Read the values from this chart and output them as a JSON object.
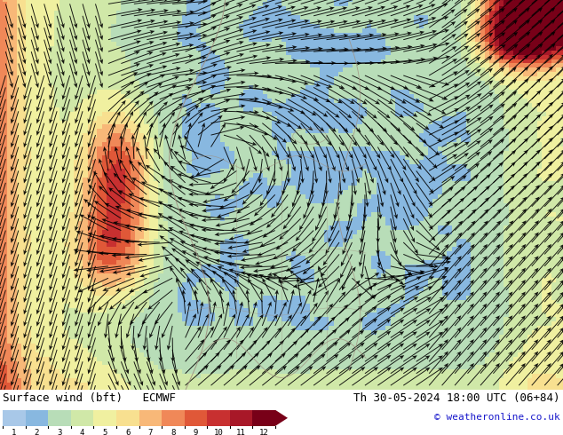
{
  "title_left": "Surface wind (bft)   ECMWF",
  "title_right": "Th 30-05-2024 18:00 UTC (06+84)",
  "copyright": "© weatheronline.co.uk",
  "colorbar_labels": [
    "1",
    "2",
    "3",
    "4",
    "5",
    "6",
    "7",
    "8",
    "9",
    "10",
    "11",
    "12"
  ],
  "colorbar_colors": [
    "#a8c8e8",
    "#88b8e0",
    "#b8ddb8",
    "#d0e8a8",
    "#f0f0a0",
    "#f8e090",
    "#f8b878",
    "#f08858",
    "#e05838",
    "#c83030",
    "#a81828",
    "#780018"
  ],
  "background_color": "#ffffff",
  "figsize": [
    6.34,
    4.9
  ],
  "dpi": 100,
  "font_size_title": 9,
  "font_size_copyright": 8
}
